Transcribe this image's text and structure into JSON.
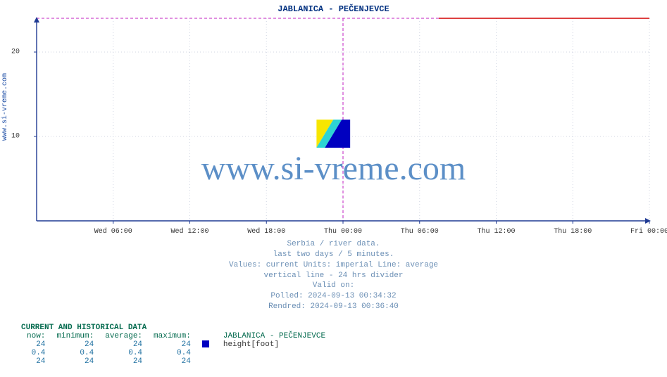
{
  "chart": {
    "title": "JABLANICA -  PEČENJEVCE",
    "ylabel_rotated": "www.si-vreme.com",
    "watermark_text": "www.si-vreme.com",
    "background_color": "#ffffff",
    "axis_color": "#1f3a93",
    "grid_color": "#d0d6e2",
    "divider_color": "#c020c0",
    "series_color": "#d40000",
    "type": "line",
    "y": {
      "min": 0,
      "max": 24,
      "ticks": [
        10,
        20
      ],
      "tick_labels": [
        "10",
        "20"
      ]
    },
    "x": {
      "min_h": 0,
      "max_h": 48,
      "divider_h": 24,
      "ticks_h": [
        6,
        12,
        18,
        24,
        30,
        36,
        42,
        48
      ],
      "tick_labels": [
        "Wed 06:00",
        "Wed 12:00",
        "Wed 18:00",
        "Thu 00:00",
        "Thu 06:00",
        "Thu 12:00",
        "Thu 18:00",
        "Fri 00:00"
      ]
    },
    "series": {
      "segments": [
        {
          "start_h": 31.5,
          "end_h": 48,
          "value": 24
        }
      ]
    }
  },
  "footer": {
    "line1": "Serbia / river data.",
    "line2": "last two days / 5 minutes.",
    "line3": "Values: current  Units: imperial  Line: average",
    "line4": "vertical line - 24 hrs  divider",
    "line5": "Valid on:",
    "line6": "Polled: 2024-09-13 00:34:32",
    "line7": "Rendred: 2024-09-13 00:36:40"
  },
  "data_section": {
    "header": "CURRENT AND HISTORICAL DATA",
    "columns": [
      "now:",
      "minimum:",
      "average:",
      "maximum:"
    ],
    "station_header": "JABLANICA -  PEČENJEVCE",
    "row_labels": [
      "height[foot]",
      "",
      ""
    ],
    "rows": [
      [
        "24",
        "24",
        "24",
        "24"
      ],
      [
        "0.4",
        "0.4",
        "0.4",
        "0.4"
      ],
      [
        "24",
        "24",
        "24",
        "24"
      ]
    ],
    "legend_color": "#0000c0"
  }
}
